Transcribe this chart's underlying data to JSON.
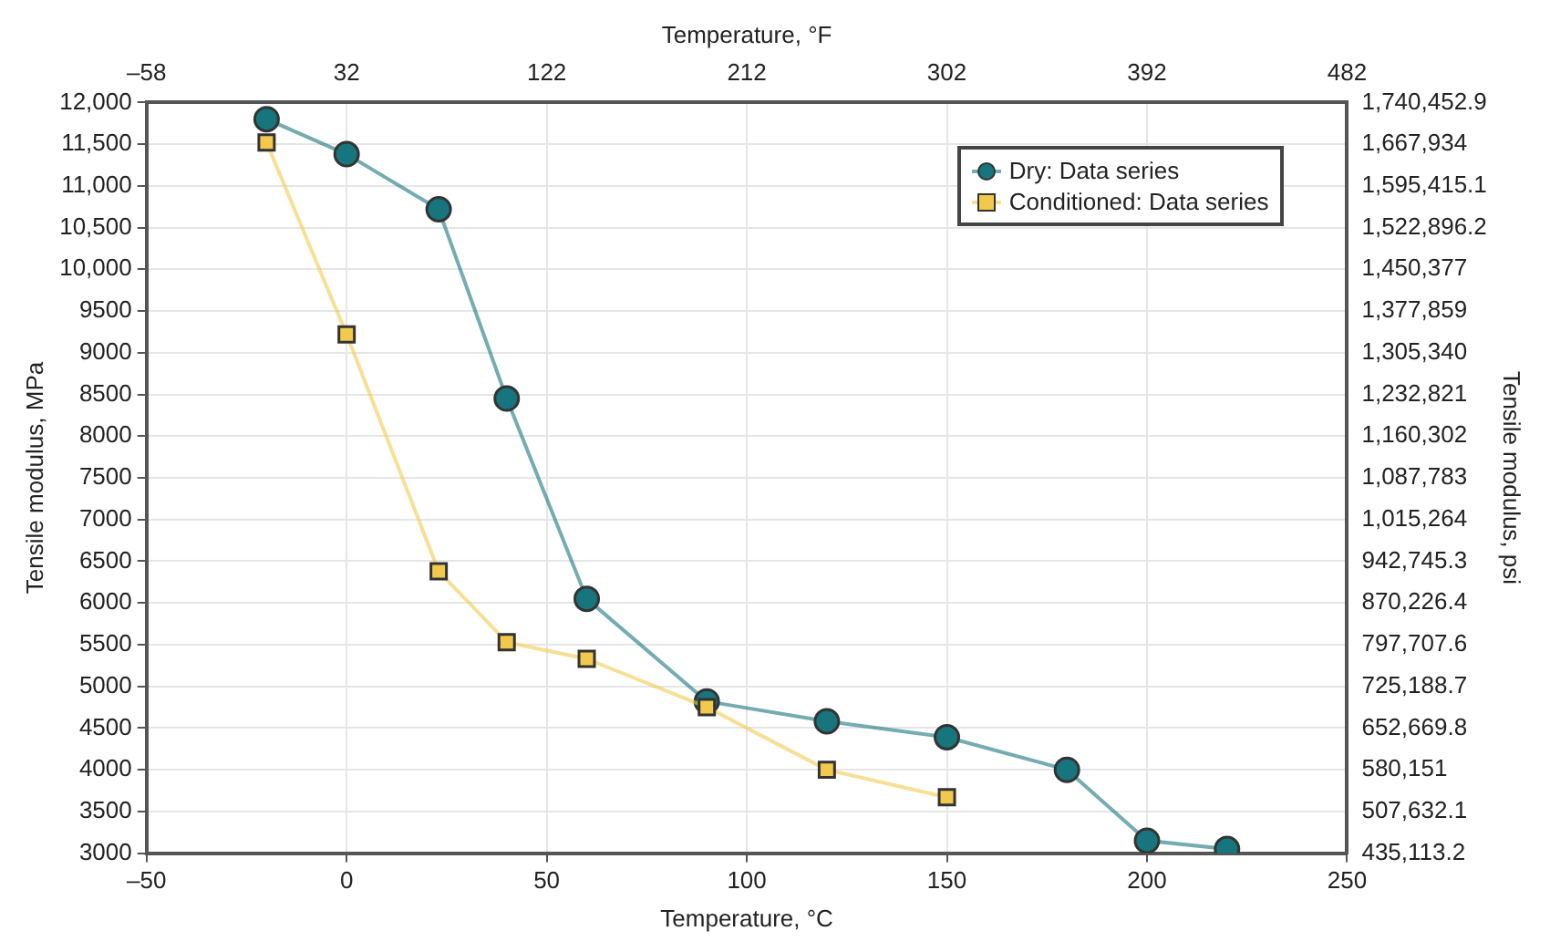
{
  "chart_data": {
    "type": "line",
    "xlabel": "Temperature, °C",
    "x2label": "Temperature, °F",
    "ylabel": "Tensile modulus, MPa",
    "y2label": "Tensile modulus, psi",
    "xlim": [
      -50,
      250
    ],
    "xticks": [
      {
        "value": -50,
        "label": "–50"
      },
      0,
      50,
      100,
      150,
      200,
      250
    ],
    "x2lim": [
      -58,
      482
    ],
    "x2ticks": [
      {
        "value": -58,
        "label": "–58"
      },
      32,
      122,
      212,
      302,
      392,
      482
    ],
    "ylim": [
      3000,
      12000
    ],
    "yticks": [
      3000,
      3500,
      4000,
      4500,
      5000,
      5500,
      6000,
      6500,
      7000,
      7500,
      8000,
      8500,
      9000,
      9500,
      {
        "value": 10000,
        "label": "10,000"
      },
      {
        "value": 10500,
        "label": "10,500"
      },
      {
        "value": 11000,
        "label": "11,000"
      },
      {
        "value": 11500,
        "label": "11,500"
      },
      {
        "value": 12000,
        "label": "12,000"
      }
    ],
    "y2lim": [
      435113.2,
      1740452.9
    ],
    "y2ticks": [
      {
        "value": 435113.2,
        "label": "435,113.2"
      },
      {
        "value": 507632.1,
        "label": "507,632.1"
      },
      {
        "value": 580151,
        "label": "580,151"
      },
      {
        "value": 652669.8,
        "label": "652,669.8"
      },
      {
        "value": 725188.7,
        "label": "725,188.7"
      },
      {
        "value": 797707.6,
        "label": "797,707.6"
      },
      {
        "value": 870226.4,
        "label": "870,226.4"
      },
      {
        "value": 942745.3,
        "label": "942,745.3"
      },
      {
        "value": 1015264,
        "label": "1,015,264"
      },
      {
        "value": 1087783,
        "label": "1,087,783"
      },
      {
        "value": 1160302,
        "label": "1,160,302"
      },
      {
        "value": 1232821,
        "label": "1,232,821"
      },
      {
        "value": 1305340,
        "label": "1,305,340"
      },
      {
        "value": 1377859,
        "label": "1,377,859"
      },
      {
        "value": 1450377,
        "label": "1,450,377"
      },
      {
        "value": 1522896.2,
        "label": "1,522,896.2"
      },
      {
        "value": 1595415.1,
        "label": "1,595,415.1"
      },
      {
        "value": 1667934,
        "label": "1,667,934"
      },
      {
        "value": 1740452.9,
        "label": "1,740,452.9"
      }
    ],
    "grid": true,
    "legend": "top right",
    "line_style": "solid",
    "series": [
      {
        "name": "Dry: Data series",
        "color": "#17757d",
        "marker": "circle",
        "x": [
          -20,
          0,
          23,
          40,
          60,
          90,
          120,
          150,
          180,
          200,
          220
        ],
        "values": [
          11800,
          11380,
          10720,
          8450,
          6050,
          4820,
          4580,
          4390,
          4000,
          3150,
          3050
        ]
      },
      {
        "name": "Conditioned: Data series",
        "color": "#f2c94c",
        "marker": "square",
        "x": [
          -20,
          0,
          23,
          40,
          60,
          90,
          120,
          150
        ],
        "values": [
          11520,
          9220,
          6380,
          5530,
          5330,
          4750,
          4000,
          3670
        ]
      }
    ]
  }
}
